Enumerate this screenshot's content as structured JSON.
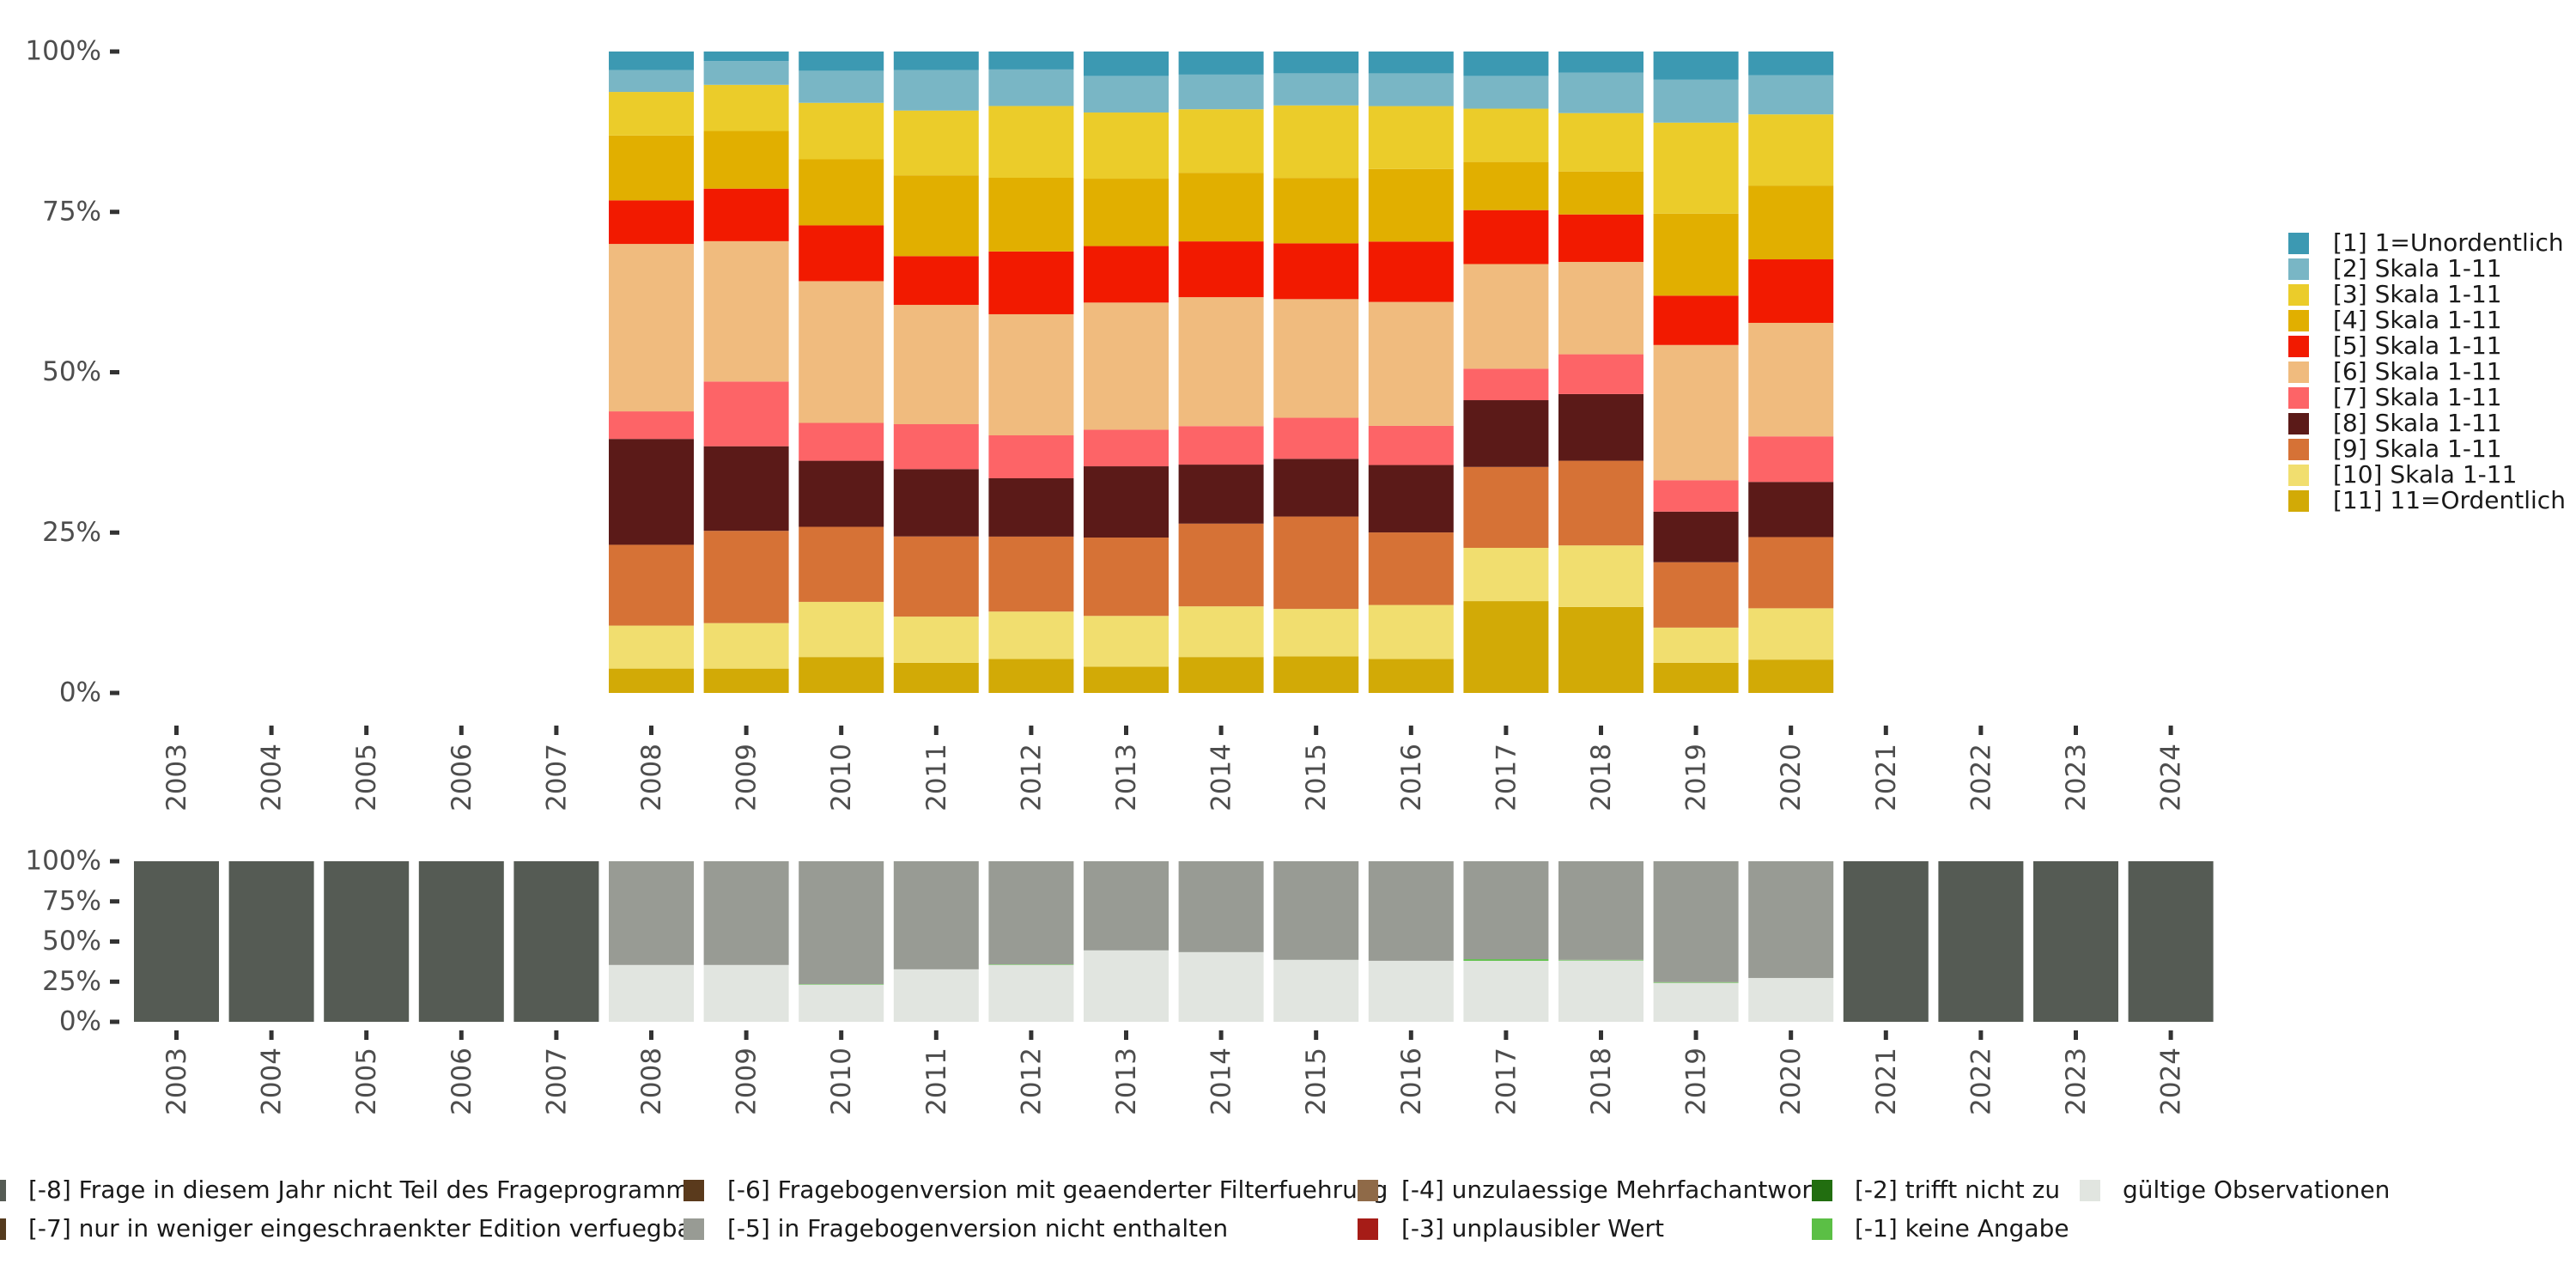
{
  "chart_data": [
    {
      "type": "bar",
      "stacked": true,
      "normalized": true,
      "title": "",
      "xlabel": "",
      "ylabel": "",
      "ylim": [
        0,
        100
      ],
      "y_ticks": [
        "0%",
        "25%",
        "50%",
        "75%",
        "100%"
      ],
      "y_tick_values": [
        0,
        25,
        50,
        75,
        100
      ],
      "categories": [
        "2003",
        "2004",
        "2005",
        "2006",
        "2007",
        "2008",
        "2009",
        "2010",
        "2011",
        "2012",
        "2013",
        "2014",
        "2015",
        "2016",
        "2017",
        "2018",
        "2019",
        "2020",
        "2021",
        "2022",
        "2023",
        "2024"
      ],
      "legend_position": "right",
      "series": [
        {
          "name": "[1] 1=Unordentlich",
          "color": "#3c99b2",
          "values": [
            null,
            null,
            null,
            null,
            null,
            2.9,
            1.5,
            3.0,
            2.9,
            2.8,
            3.8,
            3.6,
            3.4,
            3.4,
            3.8,
            3.3,
            4.4,
            3.7,
            null,
            null,
            null,
            null
          ]
        },
        {
          "name": "[2] Skala 1-11",
          "color": "#79b6c5",
          "values": [
            null,
            null,
            null,
            null,
            null,
            3.4,
            3.7,
            5.0,
            6.3,
            5.7,
            5.7,
            5.4,
            5.0,
            5.1,
            5.1,
            6.3,
            6.7,
            6.1,
            null,
            null,
            null,
            null
          ]
        },
        {
          "name": "[3] Skala 1-11",
          "color": "#ebcc2a",
          "values": [
            null,
            null,
            null,
            null,
            null,
            6.8,
            7.2,
            8.8,
            10.1,
            11.2,
            10.3,
            9.9,
            11.3,
            9.8,
            8.3,
            9.1,
            14.2,
            11.1,
            null,
            null,
            null,
            null
          ]
        },
        {
          "name": "[4] Skala 1-11",
          "color": "#e1af00",
          "values": [
            null,
            null,
            null,
            null,
            null,
            10.1,
            9.0,
            10.3,
            12.6,
            11.5,
            10.5,
            10.7,
            10.2,
            11.3,
            7.5,
            6.7,
            12.8,
            11.5,
            null,
            null,
            null,
            null
          ]
        },
        {
          "name": "[5] Skala 1-11",
          "color": "#f21a00",
          "values": [
            null,
            null,
            null,
            null,
            null,
            6.8,
            8.2,
            8.7,
            7.6,
            9.8,
            8.8,
            8.7,
            8.7,
            9.4,
            8.4,
            7.4,
            7.7,
            9.9,
            null,
            null,
            null,
            null
          ]
        },
        {
          "name": "[6] Skala 1-11",
          "color": "#f0bb7e",
          "values": [
            null,
            null,
            null,
            null,
            null,
            26.1,
            21.9,
            22.1,
            18.6,
            18.9,
            19.8,
            20.1,
            18.5,
            19.3,
            16.3,
            14.4,
            21.1,
            17.7,
            null,
            null,
            null,
            null
          ]
        },
        {
          "name": "[7] Skala 1-11",
          "color": "#fd6467",
          "values": [
            null,
            null,
            null,
            null,
            null,
            4.3,
            10.1,
            5.9,
            7.0,
            6.7,
            5.7,
            6.0,
            6.4,
            6.1,
            4.9,
            6.2,
            4.9,
            7.1,
            null,
            null,
            null,
            null
          ]
        },
        {
          "name": "[8] Skala 1-11",
          "color": "#5b1a18",
          "values": [
            null,
            null,
            null,
            null,
            null,
            16.5,
            13.2,
            10.3,
            10.5,
            9.1,
            11.1,
            9.2,
            9.0,
            10.5,
            10.4,
            10.4,
            7.9,
            8.6,
            null,
            null,
            null,
            null
          ]
        },
        {
          "name": "[9] Skala 1-11",
          "color": "#d67236",
          "values": [
            null,
            null,
            null,
            null,
            null,
            12.6,
            14.4,
            11.7,
            12.5,
            11.7,
            12.2,
            12.9,
            14.4,
            11.3,
            12.6,
            13.2,
            10.2,
            11.1,
            null,
            null,
            null,
            null
          ]
        },
        {
          "name": "[10] Skala 1-11",
          "color": "#f1de6f",
          "values": [
            null,
            null,
            null,
            null,
            null,
            6.7,
            7.1,
            8.6,
            7.2,
            7.4,
            7.9,
            7.9,
            7.4,
            8.4,
            8.3,
            9.6,
            5.5,
            8.0,
            null,
            null,
            null,
            null
          ]
        },
        {
          "name": "[11] 11=Ordentlich",
          "color": "#d2aa06",
          "values": [
            null,
            null,
            null,
            null,
            null,
            3.8,
            3.8,
            5.6,
            4.7,
            5.3,
            4.1,
            5.6,
            5.7,
            5.3,
            14.3,
            13.4,
            4.7,
            5.2,
            null,
            null,
            null,
            null
          ]
        }
      ]
    },
    {
      "type": "bar",
      "stacked": true,
      "normalized": true,
      "title": "",
      "xlabel": "",
      "ylabel": "",
      "ylim": [
        0,
        100
      ],
      "y_ticks": [
        "0%",
        "25%",
        "50%",
        "75%",
        "100%"
      ],
      "y_tick_values": [
        0,
        25,
        50,
        75,
        100
      ],
      "categories": [
        "2003",
        "2004",
        "2005",
        "2006",
        "2007",
        "2008",
        "2009",
        "2010",
        "2011",
        "2012",
        "2013",
        "2014",
        "2015",
        "2016",
        "2017",
        "2018",
        "2019",
        "2020",
        "2021",
        "2022",
        "2023",
        "2024"
      ],
      "legend_position": "bottom",
      "series": [
        {
          "name": "gültige Observationen",
          "color": "#e1e5e0",
          "values": [
            0,
            0,
            0,
            0,
            0,
            35.4,
            35.4,
            23.2,
            32.7,
            35.5,
            44.5,
            43.4,
            38.6,
            38.0,
            38.0,
            38.2,
            24.3,
            27.3,
            0,
            0,
            0,
            0
          ]
        },
        {
          "name": "[-1] keine Angabe",
          "color": "#5bbf45",
          "values": [
            0,
            0,
            0,
            0,
            0,
            0,
            0,
            0.3,
            0,
            0.3,
            0,
            0,
            0,
            0,
            1.0,
            0.4,
            0.4,
            0,
            0,
            0,
            0,
            0
          ]
        },
        {
          "name": "[-2] trifft nicht zu",
          "color": "#226e10",
          "values": [
            0,
            0,
            0,
            0,
            0,
            0,
            0,
            0,
            0,
            0,
            0,
            0,
            0,
            0,
            0,
            0,
            0,
            0,
            0,
            0,
            0,
            0
          ]
        },
        {
          "name": "[-3] unplausibler Wert",
          "color": "#a61c17",
          "values": [
            0,
            0,
            0,
            0,
            0,
            0,
            0,
            0,
            0,
            0,
            0,
            0,
            0,
            0,
            0,
            0,
            0,
            0,
            0,
            0,
            0,
            0
          ]
        },
        {
          "name": "[-4] unzulaessige Mehrfachantwort",
          "color": "#8f6a48",
          "values": [
            0,
            0,
            0,
            0,
            0,
            0,
            0,
            0,
            0,
            0,
            0,
            0,
            0,
            0,
            0,
            0,
            0,
            0,
            0,
            0,
            0,
            0
          ]
        },
        {
          "name": "[-5] in Fragebogenversion nicht enthalten",
          "color": "#989b94",
          "values": [
            0,
            0,
            0,
            0,
            0,
            64.6,
            64.6,
            76.5,
            67.3,
            64.2,
            55.5,
            56.6,
            61.4,
            62.0,
            61.0,
            61.4,
            75.3,
            72.7,
            0,
            0,
            0,
            0
          ]
        },
        {
          "name": "[-6] Fragebogenversion mit geaenderter Filterfuehrung",
          "color": "#5a3a1c",
          "values": [
            0,
            0,
            0,
            0,
            0,
            0,
            0,
            0,
            0,
            0,
            0,
            0,
            0,
            0,
            0,
            0,
            0,
            0,
            0,
            0,
            0,
            0
          ]
        },
        {
          "name": "[-7] nur in weniger eingeschraenkter Edition verfuegbar",
          "color": "#553b1e",
          "values": [
            0,
            0,
            0,
            0,
            0,
            0,
            0,
            0,
            0,
            0,
            0,
            0,
            0,
            0,
            0,
            0,
            0,
            0,
            0,
            0,
            0,
            0
          ]
        },
        {
          "name": "[-8] Frage in diesem Jahr nicht Teil des Frageprogramms",
          "color": "#555b54",
          "values": [
            100,
            100,
            100,
            100,
            100,
            0,
            0,
            0,
            0,
            0,
            0,
            0,
            0,
            0,
            0,
            0,
            0,
            0,
            100,
            100,
            100,
            100
          ]
        }
      ],
      "legend_order": [
        "[-8] Frage in diesem Jahr nicht Teil des Frageprogramms",
        "[-7] nur in weniger eingeschraenkter Edition verfuegbar",
        "[-6] Fragebogenversion mit geaenderter Filterfuehrung",
        "[-5] in Fragebogenversion nicht enthalten",
        "[-4] unzulaessige Mehrfachantwort",
        "[-3] unplausibler Wert",
        "[-2] trifft nicht zu",
        "[-1] keine Angabe",
        "gültige Observationen"
      ]
    }
  ]
}
